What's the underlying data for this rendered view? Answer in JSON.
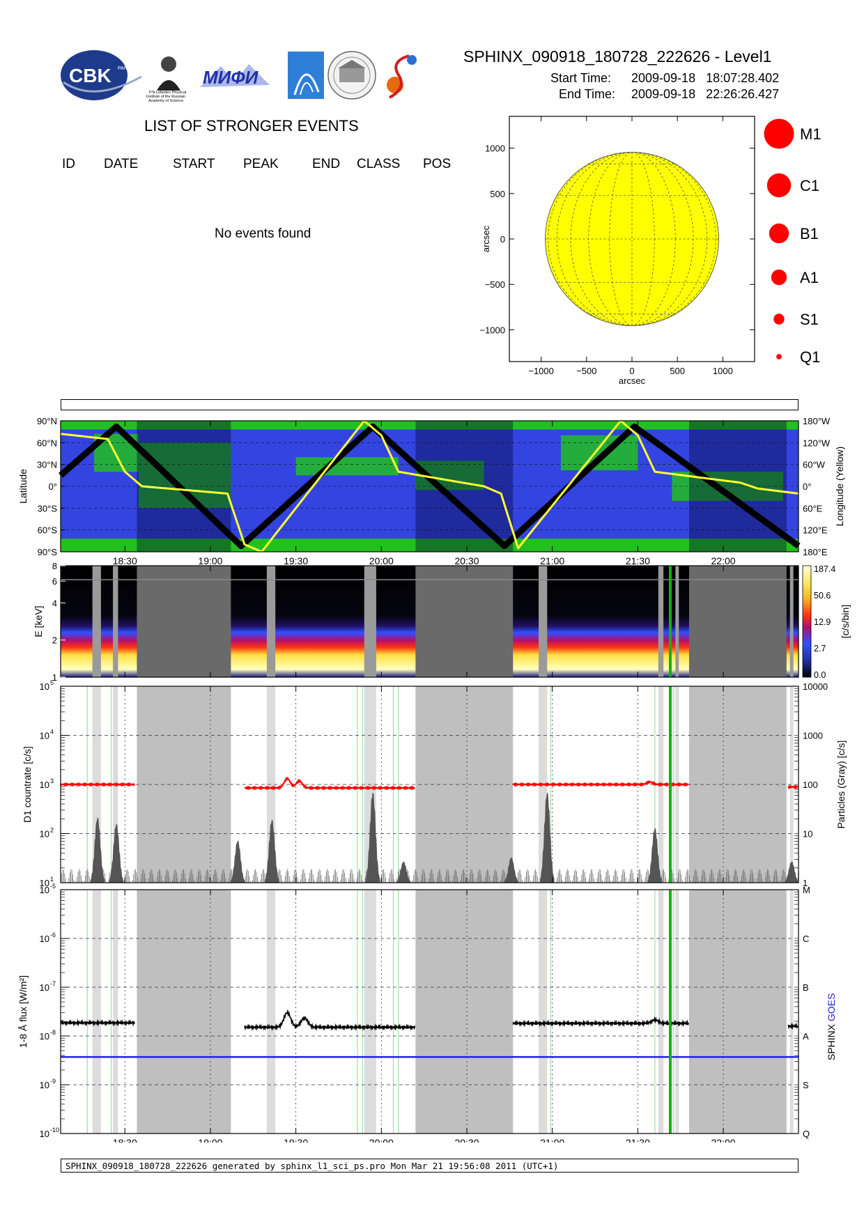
{
  "header": {
    "title": "SPHINX_090918_180728_222626 - Level1",
    "start_label": "Start Time:",
    "start_value": "2009-09-18   18:07:28.402",
    "end_label": "End Time:",
    "end_value": "2009-09-18   22:26:26.427",
    "logos": [
      {
        "name": "cbk-logo",
        "text": "CBK",
        "sub": "PAN"
      },
      {
        "name": "lebedev-logo",
        "lines": [
          "P.N.Lebedev Physical",
          "Institute of the Russian",
          "Academy of Science"
        ]
      },
      {
        "name": "mifi-logo",
        "text": "МИФИ"
      },
      {
        "name": "institute-logo"
      },
      {
        "name": "seal-logo"
      },
      {
        "name": "swirl-logo"
      }
    ]
  },
  "events": {
    "title": "LIST OF STRONGER EVENTS",
    "columns": [
      "ID",
      "DATE",
      "START",
      "PEAK",
      "END",
      "CLASS",
      "POS"
    ],
    "empty_message": "No events found"
  },
  "sun_map": {
    "xlabel": "arcsec",
    "ylabel": "arcsec",
    "xticks": [
      -1000,
      -500,
      0,
      500,
      1000
    ],
    "yticks": [
      1000,
      500,
      0,
      -500,
      -1000
    ],
    "xlim": [
      -1350,
      1350
    ],
    "ylim": [
      -1350,
      1350
    ],
    "solar_radius": 955,
    "disk_color": "#ffff00"
  },
  "class_legend": [
    {
      "label": "M1",
      "size": 5
    },
    {
      "label": "C1",
      "size": 4
    },
    {
      "label": "B1",
      "size": 3.3
    },
    {
      "label": "A1",
      "size": 2.6
    },
    {
      "label": "S1",
      "size": 1.8
    },
    {
      "label": "Q1",
      "size": 0.9
    }
  ],
  "time_axis": {
    "start_hours": 18.124,
    "end_hours": 22.44,
    "tick_hours": [
      18.5,
      19.0,
      19.5,
      20.0,
      20.5,
      21.0,
      21.5,
      22.0
    ],
    "tick_labels": [
      "18:30",
      "19:00",
      "19:30",
      "20:00",
      "20:30",
      "21:00",
      "21:30",
      "22:00"
    ]
  },
  "data_gaps": {
    "shadow_intervals": [
      [
        18.57,
        19.12
      ],
      [
        20.2,
        20.77
      ],
      [
        21.8,
        22.37
      ]
    ],
    "particle_intervals": [
      [
        18.31,
        18.36
      ],
      [
        18.43,
        18.46
      ],
      [
        19.33,
        19.38
      ],
      [
        19.9,
        19.97
      ],
      [
        20.92,
        20.97
      ],
      [
        21.62,
        21.65
      ],
      [
        21.72,
        21.74
      ],
      [
        22.39,
        22.41
      ]
    ],
    "marker_hours": [
      21.69
    ]
  },
  "chart_data": [
    {
      "id": "orbit-panel",
      "type": "line",
      "ylabel": "Latitude",
      "y2label": "Longitude (Yellow)",
      "yticks": [
        "90°N",
        "60°N",
        "30°N",
        "0°",
        "30°S",
        "60°S",
        "90°S"
      ],
      "y2ticks": [
        "180°W",
        "120°W",
        "60°W",
        "0°",
        "60°E",
        "120°E",
        "180°E"
      ],
      "ylim": [
        -90,
        90
      ],
      "series": [
        {
          "color": "#000000",
          "x": [
            18.124,
            18.45,
            19.18,
            19.95,
            20.72,
            21.48,
            22.44
          ],
          "values": [
            15,
            82,
            -82,
            82,
            -82,
            82,
            -82
          ]
        },
        {
          "color": "#ffff33",
          "x": [
            18.124,
            18.4,
            18.5,
            18.6,
            19.1,
            19.2,
            19.3,
            19.9,
            20.0,
            20.1,
            20.6,
            20.7,
            20.8,
            21.4,
            21.5,
            21.6,
            22.1,
            22.2,
            22.44
          ],
          "values": [
            72,
            65,
            20,
            0,
            -10,
            -80,
            -90,
            90,
            70,
            20,
            0,
            -10,
            -85,
            90,
            70,
            20,
            5,
            -3,
            -10
          ]
        }
      ]
    },
    {
      "id": "spectrum-panel",
      "type": "heatmap",
      "ylabel": "E [keV]",
      "yticks": [
        1,
        2,
        4,
        6,
        8
      ],
      "colorbar_label": "[c/s/bin]",
      "colorbar_ticks": [
        "187.4",
        "50.6",
        "12.9",
        "2.7",
        "0.0"
      ]
    },
    {
      "id": "countrate-panel",
      "type": "line",
      "ylabel": "D1 countrate [c/s]",
      "y2label": "Particles (Gray) [c/s]",
      "yticks": [
        "10",
        "10",
        "10",
        "10",
        "10"
      ],
      "ytick_exp": [
        "5",
        "4",
        "3",
        "2",
        "1"
      ],
      "y2ticks": [
        "10000",
        "1000",
        "100",
        "10",
        "1"
      ],
      "ylim_log": [
        1,
        5
      ],
      "series": [
        {
          "color": "#ff0000",
          "segments": [
            [
              18.124,
              18.56,
              3.0
            ],
            [
              19.2,
              20.2,
              2.93
            ],
            [
              20.77,
              21.8,
              3.0
            ],
            [
              22.38,
              22.44,
              2.95
            ]
          ],
          "bumps": [
            [
              19.45,
              3.12
            ],
            [
              19.52,
              3.07
            ],
            [
              21.57,
              3.05
            ]
          ]
        },
        {
          "color": "#555555",
          "peaks": [
            [
              18.34,
              2.55
            ],
            [
              18.45,
              2.4
            ],
            [
              19.16,
              2.0
            ],
            [
              19.36,
              2.5
            ],
            [
              19.95,
              3.15
            ],
            [
              20.13,
              1.5
            ],
            [
              20.76,
              1.6
            ],
            [
              20.97,
              3.15
            ],
            [
              21.6,
              2.3
            ],
            [
              22.4,
              1.5
            ]
          ]
        }
      ]
    },
    {
      "id": "xray-flux-panel",
      "type": "line",
      "ylabel": "1-8 Å flux [W/m²]",
      "y2label": "SPHINX GOES",
      "yticks": [
        "10",
        "10",
        "10",
        "10",
        "10",
        "10"
      ],
      "ytick_exp": [
        "-5",
        "-6",
        "-7",
        "-8",
        "-9",
        "-10"
      ],
      "y2ticks": [
        "M",
        "C",
        "B",
        "A",
        "S",
        "Q"
      ],
      "ylim_log": [
        -10,
        -5
      ],
      "series": [
        {
          "name": "SPHINX",
          "color": "#000000",
          "segments": [
            [
              18.124,
              18.56,
              -7.73
            ],
            [
              19.2,
              20.2,
              -7.82
            ],
            [
              20.77,
              21.8,
              -7.74
            ],
            [
              22.38,
              22.44,
              -7.8
            ]
          ],
          "bumps": [
            [
              19.45,
              -7.52
            ],
            [
              19.55,
              -7.63
            ],
            [
              21.6,
              -7.67
            ]
          ]
        },
        {
          "name": "GOES",
          "color": "#2020e0",
          "level": -8.43
        }
      ]
    }
  ]
}
